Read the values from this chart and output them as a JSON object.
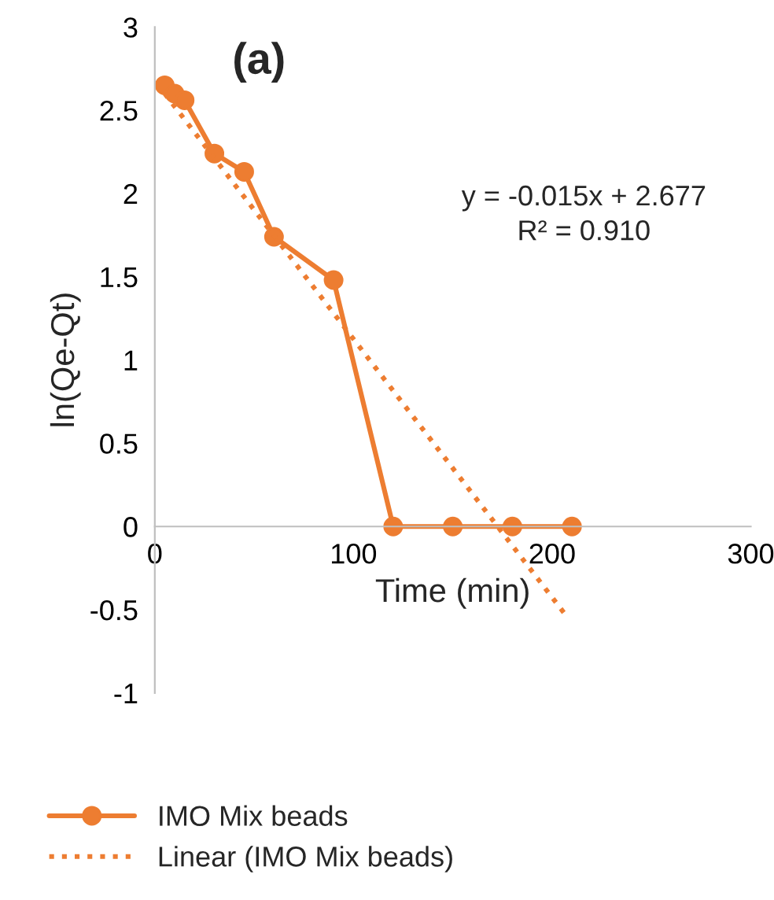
{
  "chart_data": {
    "type": "line",
    "xlabel": "Time (min)",
    "ylabel": "ln(Qe-Qt)",
    "xlim": [
      0,
      300
    ],
    "xticks": [
      0,
      100,
      200,
      300
    ],
    "ylim": [
      -1,
      3
    ],
    "yticks": [
      -1,
      -0.5,
      0,
      0.5,
      1,
      1.5,
      2,
      2.5,
      3
    ],
    "grid": false,
    "legend": "bottom",
    "annotations": [
      "(a)",
      "y = -0.015x + 2.677\nR² = 0.910"
    ],
    "series": [
      {
        "name": "IMO Mix beads",
        "color": "#ed7d31",
        "marker": "circle",
        "line_style": "solid",
        "x": [
          5,
          10,
          15,
          30,
          45,
          60,
          90,
          120,
          150,
          180,
          210
        ],
        "values": [
          2.65,
          2.6,
          2.56,
          2.24,
          2.13,
          1.74,
          1.48,
          0,
          0,
          0,
          0
        ]
      },
      {
        "name": "Linear (IMO Mix beads)",
        "color": "#ed7d31",
        "marker": "none",
        "line_style": "dotted",
        "x": [
          5,
          208
        ],
        "values": [
          2.6,
          -0.55
        ]
      }
    ]
  }
}
